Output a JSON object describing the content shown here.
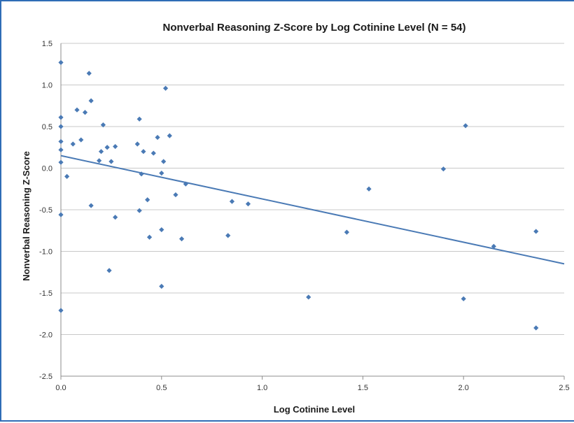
{
  "chart_data": {
    "type": "scatter",
    "title": "Nonverbal Reasoning Z-Score by Log Cotinine Level (N = 54)",
    "xlabel": "Log Cotinine Level",
    "ylabel": "Nonverbal Reasoning Z-Score",
    "xlim": [
      0.0,
      2.5
    ],
    "ylim": [
      -2.5,
      1.5
    ],
    "x_ticks": [
      "0.0",
      "0.5",
      "1.0",
      "1.5",
      "2.0",
      "2.5"
    ],
    "y_ticks": [
      "1.5",
      "1.0",
      "0.5",
      "0.0",
      "-0.5",
      "-1.0",
      "-1.5",
      "-2.0",
      "-2.5"
    ],
    "grid": "horizontal",
    "marker_color": "#4a7ab5",
    "trendline": {
      "color": "#4a7ab5",
      "x": [
        0.0,
        2.5
      ],
      "y": [
        0.15,
        -1.15
      ]
    },
    "series": [
      {
        "points": [
          [
            0.0,
            1.27
          ],
          [
            0.0,
            0.61
          ],
          [
            0.0,
            0.5
          ],
          [
            0.0,
            0.32
          ],
          [
            0.0,
            0.22
          ],
          [
            0.0,
            0.07
          ],
          [
            0.0,
            -0.56
          ],
          [
            0.0,
            -1.71
          ],
          [
            0.03,
            -0.1
          ],
          [
            0.06,
            0.29
          ],
          [
            0.08,
            0.7
          ],
          [
            0.1,
            0.34
          ],
          [
            0.12,
            0.67
          ],
          [
            0.14,
            1.14
          ],
          [
            0.15,
            0.81
          ],
          [
            0.15,
            -0.45
          ],
          [
            0.19,
            0.09
          ],
          [
            0.2,
            0.2
          ],
          [
            0.21,
            0.52
          ],
          [
            0.23,
            0.25
          ],
          [
            0.24,
            -1.23
          ],
          [
            0.25,
            0.08
          ],
          [
            0.27,
            0.26
          ],
          [
            0.27,
            -0.59
          ],
          [
            0.38,
            0.29
          ],
          [
            0.39,
            -0.51
          ],
          [
            0.39,
            0.59
          ],
          [
            0.4,
            -0.07
          ],
          [
            0.41,
            0.2
          ],
          [
            0.43,
            -0.38
          ],
          [
            0.44,
            -0.83
          ],
          [
            0.46,
            0.18
          ],
          [
            0.48,
            0.37
          ],
          [
            0.5,
            -0.06
          ],
          [
            0.51,
            0.08
          ],
          [
            0.5,
            -0.74
          ],
          [
            0.5,
            -1.42
          ],
          [
            0.52,
            0.96
          ],
          [
            0.54,
            0.39
          ],
          [
            0.57,
            -0.32
          ],
          [
            0.6,
            -0.85
          ],
          [
            0.62,
            -0.19
          ],
          [
            0.83,
            -0.81
          ],
          [
            0.85,
            -0.4
          ],
          [
            0.93,
            -0.43
          ],
          [
            1.23,
            -1.55
          ],
          [
            1.42,
            -0.77
          ],
          [
            1.53,
            -0.25
          ],
          [
            1.9,
            -0.01
          ],
          [
            2.0,
            -1.57
          ],
          [
            2.01,
            0.51
          ],
          [
            2.15,
            -0.94
          ],
          [
            2.36,
            -0.76
          ],
          [
            2.36,
            -1.92
          ]
        ]
      }
    ]
  }
}
